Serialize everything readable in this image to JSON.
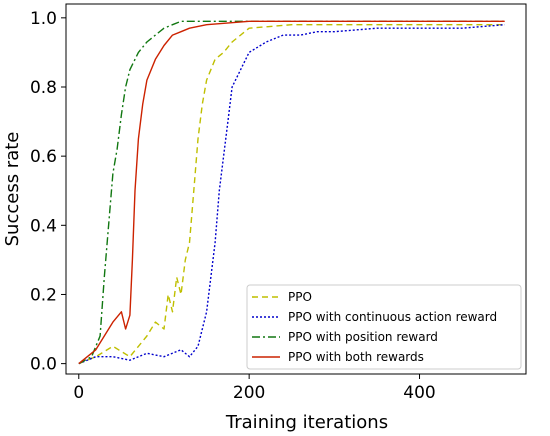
{
  "chart_data": {
    "type": "line",
    "xlabel": "Training iterations",
    "ylabel": "Success rate",
    "xlim": [
      -15,
      525
    ],
    "ylim": [
      -0.03,
      1.04
    ],
    "xticks": [
      0,
      200,
      400
    ],
    "yticks": [
      0.0,
      0.2,
      0.4,
      0.6,
      0.8,
      1.0
    ],
    "xtick_labels": [
      "0",
      "200",
      "400"
    ],
    "ytick_labels": [
      "0.0",
      "0.2",
      "0.4",
      "0.6",
      "0.8",
      "1.0"
    ],
    "legend_position": "lower-right",
    "grid": false,
    "series": [
      {
        "name": "PPO",
        "color": "#bfbf00",
        "dash": "6,4",
        "x": [
          0,
          20,
          40,
          60,
          80,
          90,
          100,
          105,
          110,
          115,
          120,
          125,
          130,
          135,
          140,
          145,
          150,
          160,
          170,
          180,
          200,
          250,
          300,
          400,
          500
        ],
        "y": [
          0.0,
          0.02,
          0.05,
          0.02,
          0.08,
          0.12,
          0.1,
          0.2,
          0.15,
          0.25,
          0.2,
          0.3,
          0.35,
          0.5,
          0.65,
          0.75,
          0.82,
          0.88,
          0.9,
          0.93,
          0.97,
          0.98,
          0.98,
          0.98,
          0.98
        ]
      },
      {
        "name": "PPO with continuous action reward",
        "color": "#0000cc",
        "dash": "2,2",
        "x": [
          0,
          20,
          40,
          60,
          80,
          100,
          120,
          130,
          140,
          150,
          160,
          165,
          170,
          175,
          180,
          190,
          200,
          220,
          240,
          260,
          280,
          300,
          350,
          400,
          450,
          500
        ],
        "y": [
          0.0,
          0.02,
          0.02,
          0.01,
          0.03,
          0.02,
          0.04,
          0.02,
          0.05,
          0.15,
          0.35,
          0.5,
          0.6,
          0.7,
          0.8,
          0.85,
          0.9,
          0.93,
          0.95,
          0.95,
          0.96,
          0.96,
          0.97,
          0.97,
          0.97,
          0.98
        ]
      },
      {
        "name": "PPO with position reward",
        "color": "#117711",
        "dash": "8,3,2,3",
        "x": [
          0,
          15,
          25,
          30,
          35,
          40,
          45,
          50,
          55,
          60,
          70,
          80,
          90,
          100,
          110,
          120,
          150,
          200,
          300,
          400,
          500
        ],
        "y": [
          0.0,
          0.02,
          0.08,
          0.25,
          0.4,
          0.55,
          0.62,
          0.72,
          0.8,
          0.85,
          0.9,
          0.93,
          0.95,
          0.97,
          0.98,
          0.99,
          0.99,
          0.99,
          0.99,
          0.99,
          0.99
        ]
      },
      {
        "name": "PPO with both rewards",
        "color": "#cc2200",
        "dash": "",
        "x": [
          0,
          20,
          30,
          40,
          50,
          55,
          60,
          63,
          66,
          70,
          75,
          80,
          90,
          100,
          110,
          120,
          130,
          150,
          200,
          300,
          400,
          500
        ],
        "y": [
          0.0,
          0.04,
          0.08,
          0.12,
          0.15,
          0.1,
          0.14,
          0.3,
          0.5,
          0.65,
          0.75,
          0.82,
          0.88,
          0.92,
          0.95,
          0.96,
          0.97,
          0.98,
          0.99,
          0.99,
          0.99,
          0.99
        ]
      }
    ]
  }
}
